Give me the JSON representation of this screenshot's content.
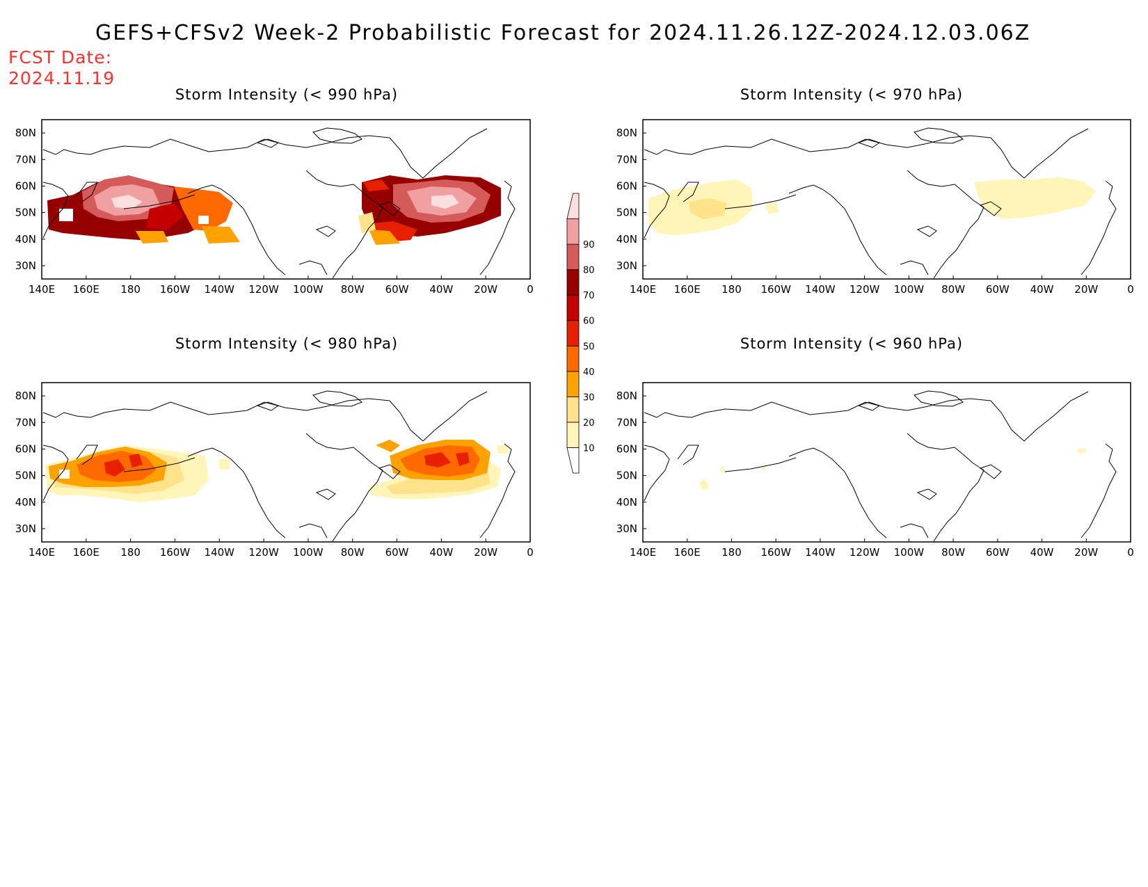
{
  "header": {
    "title": "GEFS+CFSv2 Week-2 Probabilistic Forecast for 2024.11.26.12Z-2024.12.03.06Z",
    "fcst_label": "FCST Date:",
    "fcst_date": "2024.11.19"
  },
  "axes": {
    "lon_labels": [
      "140E",
      "160E",
      "180",
      "160W",
      "140W",
      "120W",
      "100W",
      "80W",
      "60W",
      "40W",
      "20W",
      "0"
    ],
    "lat_labels": [
      "80N",
      "70N",
      "60N",
      "50N",
      "40N",
      "30N"
    ]
  },
  "colorbar": {
    "levels": [
      "10",
      "20",
      "30",
      "40",
      "50",
      "60",
      "70",
      "80",
      "90"
    ],
    "colors": [
      "#ffffff",
      "#fff5b8",
      "#ffe28a",
      "#ffa200",
      "#ff6a00",
      "#e62000",
      "#c40000",
      "#960000",
      "#d55a5a",
      "#f0a0a0",
      "#fcdede"
    ]
  },
  "panels": [
    {
      "title": "Storm Intensity (< 990 hPa)"
    },
    {
      "title": "Storm Intensity (< 970 hPa)"
    },
    {
      "title": "Storm Intensity (< 980 hPa)"
    },
    {
      "title": "Storm Intensity (< 960 hPa)"
    }
  ]
}
